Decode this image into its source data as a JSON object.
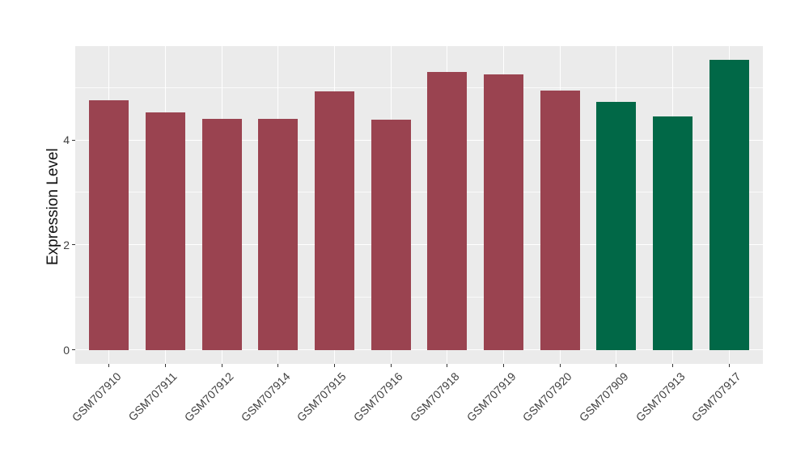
{
  "figure": {
    "background": "#FFFFFF",
    "panel_background": "#EBEBEB",
    "grid_color": "#FFFFFF",
    "tick_color": "#333333",
    "axis_text_color": "#404040"
  },
  "chart_data": {
    "type": "bar",
    "title": "",
    "xlabel": "",
    "ylabel": "Expression Level",
    "categories": [
      "GSM707910",
      "GSM707911",
      "GSM707912",
      "GSM707914",
      "GSM707915",
      "GSM707916",
      "GSM707918",
      "GSM707919",
      "GSM707920",
      "GSM707909",
      "GSM707913",
      "GSM707917"
    ],
    "values": [
      4.76,
      4.53,
      4.4,
      4.4,
      4.92,
      4.38,
      5.29,
      5.25,
      4.94,
      4.72,
      4.45,
      5.52
    ],
    "bar_colors": [
      "#9A4350",
      "#9A4350",
      "#9A4350",
      "#9A4350",
      "#9A4350",
      "#9A4350",
      "#9A4350",
      "#9A4350",
      "#9A4350",
      "#016847",
      "#016847",
      "#016847"
    ],
    "group_colors": {
      "red_group": "#9A4350",
      "green_group": "#016847"
    },
    "yticks": [
      0,
      2,
      4
    ],
    "yticks_minor": [
      1,
      3,
      5
    ],
    "ylim": [
      -0.262,
      5.785
    ],
    "grid": true,
    "legend": "none",
    "bar_width_frac": 0.7,
    "x_tick_rotation": -45
  }
}
